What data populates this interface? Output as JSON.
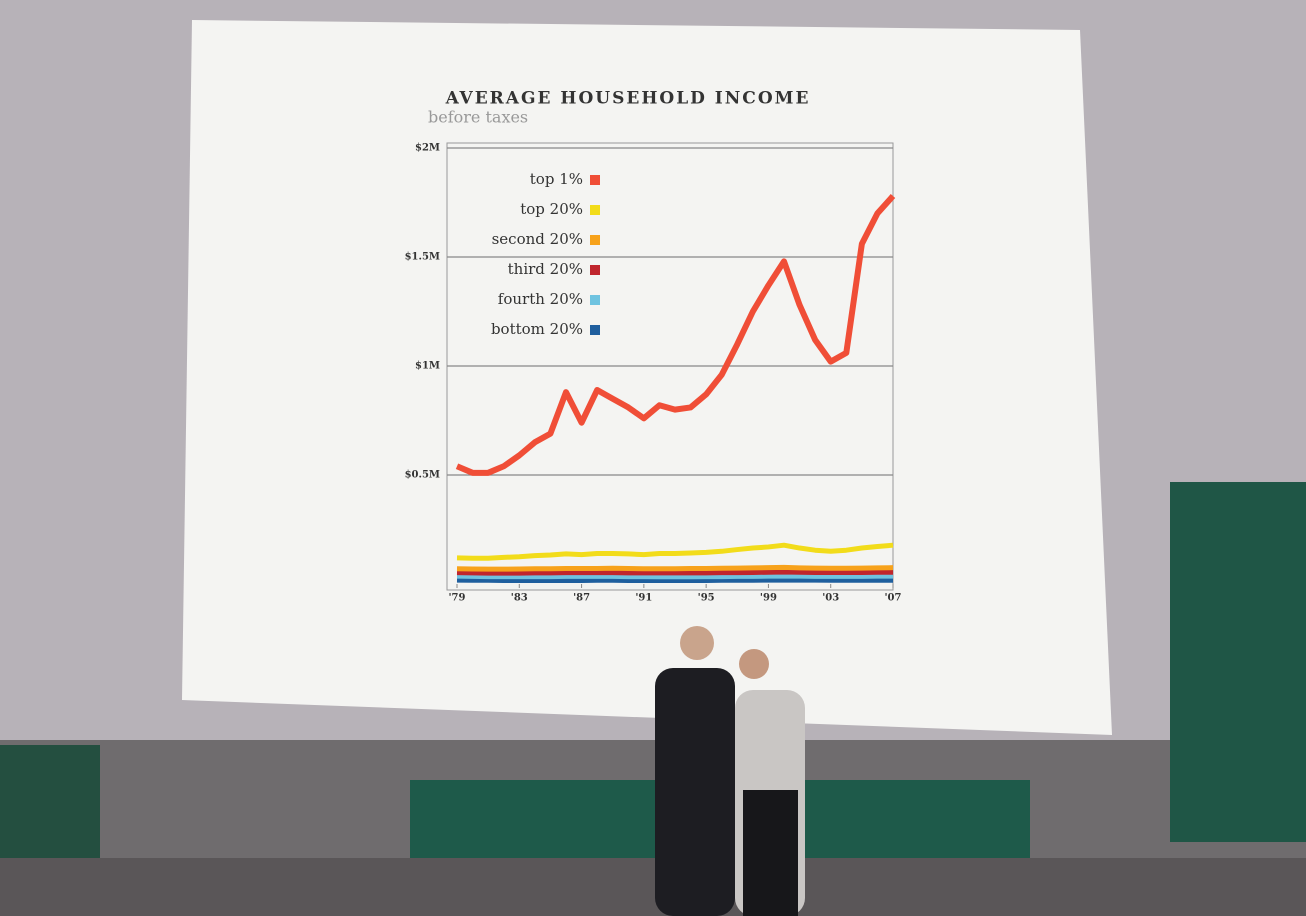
{
  "chart_data": {
    "type": "line",
    "title": "AVERAGE HOUSEHOLD INCOME",
    "subtitle": "before taxes",
    "x": [
      1979,
      1980,
      1981,
      1982,
      1983,
      1984,
      1985,
      1986,
      1987,
      1988,
      1989,
      1990,
      1991,
      1992,
      1993,
      1994,
      1995,
      1996,
      1997,
      1998,
      1999,
      2000,
      2001,
      2002,
      2003,
      2004,
      2005,
      2006,
      2007
    ],
    "xlim": [
      1979,
      2007
    ],
    "xticks": [
      {
        "value": 1979,
        "label": "'79"
      },
      {
        "value": 1983,
        "label": "'83"
      },
      {
        "value": 1987,
        "label": "'87"
      },
      {
        "value": 1991,
        "label": "'91"
      },
      {
        "value": 1995,
        "label": "'95"
      },
      {
        "value": 1999,
        "label": "'99"
      },
      {
        "value": 2003,
        "label": "'03"
      },
      {
        "value": 2007,
        "label": "'07"
      }
    ],
    "ylim": [
      0,
      2000000
    ],
    "yticks": [
      {
        "value": 500000,
        "label": "$0.5M"
      },
      {
        "value": 1000000,
        "label": "$1M"
      },
      {
        "value": 1500000,
        "label": "$1.5M"
      },
      {
        "value": 2000000,
        "label": "$2M"
      }
    ],
    "grid": true,
    "legend": "upper left",
    "series": [
      {
        "name": "top 1%",
        "color": "#f04e37",
        "values": [
          540000,
          510000,
          510000,
          540000,
          590000,
          650000,
          690000,
          880000,
          740000,
          890000,
          850000,
          810000,
          760000,
          820000,
          800000,
          810000,
          870000,
          960000,
          1100000,
          1250000,
          1370000,
          1480000,
          1280000,
          1120000,
          1020000,
          1060000,
          1560000,
          1700000,
          1780000
        ]
      },
      {
        "name": "top 20%",
        "color": "#f2dc1a",
        "values": [
          120000,
          118000,
          118000,
          122000,
          125000,
          130000,
          133000,
          138000,
          135000,
          140000,
          140000,
          138000,
          135000,
          140000,
          140000,
          142000,
          145000,
          150000,
          158000,
          165000,
          170000,
          178000,
          165000,
          155000,
          150000,
          155000,
          165000,
          172000,
          178000
        ]
      },
      {
        "name": "second 20%",
        "color": "#f7a21b",
        "values": [
          70000,
          69000,
          68000,
          68000,
          69000,
          70000,
          70000,
          71000,
          71000,
          71000,
          72000,
          71000,
          70000,
          70000,
          70000,
          71000,
          71000,
          72000,
          73000,
          74000,
          75000,
          76000,
          74000,
          73000,
          72000,
          72000,
          73000,
          74000,
          75000
        ]
      },
      {
        "name": "third 20%",
        "color": "#c0262d",
        "values": [
          52000,
          51000,
          50000,
          50000,
          50000,
          51000,
          51000,
          52000,
          52000,
          52000,
          52000,
          51000,
          51000,
          51000,
          51000,
          51000,
          51000,
          52000,
          52000,
          53000,
          54000,
          55000,
          54000,
          53000,
          53000,
          53000,
          53000,
          54000,
          54000
        ]
      },
      {
        "name": "fourth 20%",
        "color": "#6fc3e0",
        "values": [
          36000,
          35000,
          34000,
          34000,
          34000,
          34000,
          34000,
          35000,
          35000,
          35000,
          35000,
          34000,
          34000,
          33000,
          33000,
          33000,
          34000,
          34000,
          35000,
          35000,
          36000,
          36000,
          36000,
          35000,
          35000,
          35000,
          35000,
          36000,
          36000
        ]
      },
      {
        "name": "bottom 20%",
        "color": "#1f5f9e",
        "values": [
          18000,
          17000,
          17000,
          16000,
          16000,
          16000,
          16000,
          16000,
          16000,
          17000,
          17000,
          16000,
          16000,
          16000,
          16000,
          16000,
          16000,
          17000,
          17000,
          17000,
          18000,
          18000,
          18000,
          18000,
          17000,
          17000,
          17000,
          17000,
          17000
        ]
      }
    ]
  }
}
